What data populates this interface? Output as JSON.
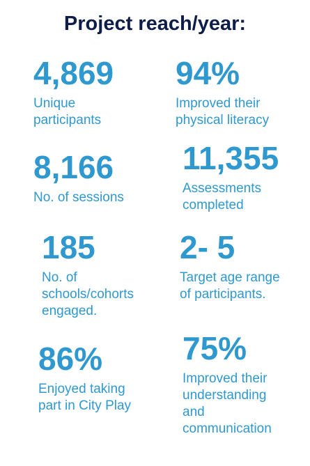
{
  "title": "Project reach/year:",
  "stats": [
    {
      "value": "4,869",
      "label": [
        "Unique",
        "participants"
      ]
    },
    {
      "value": "94%",
      "label": [
        "Improved their",
        "physical literacy"
      ]
    },
    {
      "value": "8,166",
      "label": [
        "No. of sessions"
      ]
    },
    {
      "value": "11,355",
      "label": [
        "Assessments",
        "completed"
      ]
    },
    {
      "value": "185",
      "label": [
        "No. of",
        "schools/cohorts",
        "engaged."
      ]
    },
    {
      "value": "2- 5",
      "label": [
        "Target age range",
        "of participants."
      ]
    },
    {
      "value": "86%",
      "label": [
        "Enjoyed taking",
        "part in City Play"
      ]
    },
    {
      "value": "75%",
      "label": [
        "Improved their",
        "understanding",
        "and",
        "communication"
      ]
    }
  ]
}
